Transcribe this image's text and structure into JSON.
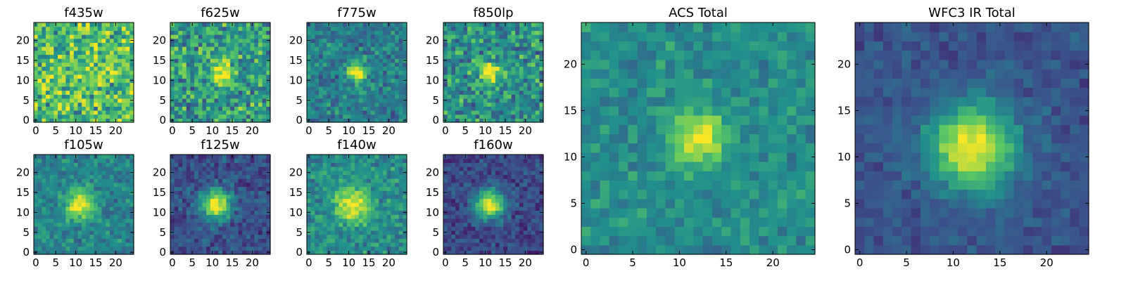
{
  "chart_data": {
    "type": "heatmap",
    "colormap": [
      "#440154",
      "#3b528b",
      "#21918c",
      "#5ec962",
      "#fde725"
    ],
    "grid_size": 25,
    "x_ticks": [
      0,
      5,
      10,
      15,
      20
    ],
    "panels": [
      {
        "title": "f435w",
        "y_ticks": [
          0,
          5,
          10,
          15,
          20
        ],
        "x_ticks": [
          0,
          5,
          10,
          15,
          20
        ],
        "peak": 0.05,
        "bg": 0.7,
        "noise": 0.25,
        "spread": 2.5,
        "center": [
          12,
          12
        ],
        "seed": 11
      },
      {
        "title": "f625w",
        "y_ticks": [
          0,
          5,
          10,
          15,
          20
        ],
        "x_ticks": [
          0,
          5,
          10,
          15,
          20
        ],
        "peak": 0.3,
        "bg": 0.55,
        "noise": 0.22,
        "spread": 2.0,
        "center": [
          12,
          12
        ],
        "seed": 23
      },
      {
        "title": "f775w",
        "y_ticks": [
          0,
          5,
          10,
          15,
          20
        ],
        "x_ticks": [
          0,
          5,
          10,
          15,
          20
        ],
        "peak": 0.55,
        "bg": 0.42,
        "noise": 0.14,
        "spread": 1.8,
        "center": [
          12,
          12
        ],
        "seed": 37
      },
      {
        "title": "f850lp",
        "y_ticks": [
          0,
          5,
          10,
          15,
          20
        ],
        "x_ticks": [
          0,
          5,
          10,
          15,
          20
        ],
        "peak": 0.45,
        "bg": 0.5,
        "noise": 0.2,
        "spread": 1.8,
        "center": [
          11,
          12
        ],
        "seed": 41
      },
      {
        "title": "f105w",
        "y_ticks": [
          0,
          5,
          10,
          15,
          20
        ],
        "x_ticks": [
          0,
          5,
          10,
          15,
          20
        ],
        "peak": 0.5,
        "bg": 0.45,
        "noise": 0.12,
        "spread": 2.5,
        "center": [
          11,
          12
        ],
        "seed": 53
      },
      {
        "title": "f125w",
        "y_ticks": [
          0,
          5,
          10,
          15,
          20
        ],
        "x_ticks": [
          0,
          5,
          10,
          15,
          20
        ],
        "peak": 0.7,
        "bg": 0.25,
        "noise": 0.1,
        "spread": 2.6,
        "center": [
          11,
          12
        ],
        "seed": 67
      },
      {
        "title": "f140w",
        "y_ticks": [
          0,
          5,
          10,
          15,
          20
        ],
        "x_ticks": [
          0,
          5,
          10,
          15,
          20
        ],
        "peak": 0.45,
        "bg": 0.48,
        "noise": 0.13,
        "spread": 3.0,
        "center": [
          11,
          12
        ],
        "seed": 71
      },
      {
        "title": "f160w",
        "y_ticks": [
          0,
          5,
          10,
          15,
          20
        ],
        "x_ticks": [
          0,
          5,
          10,
          15,
          20
        ],
        "peak": 0.75,
        "bg": 0.22,
        "noise": 0.1,
        "spread": 2.5,
        "center": [
          11,
          12
        ],
        "seed": 83
      },
      {
        "title": "ACS Total",
        "y_ticks": [
          0,
          5,
          10,
          15,
          20
        ],
        "x_ticks": [
          0,
          5,
          10,
          15,
          20
        ],
        "peak": 0.5,
        "bg": 0.48,
        "noise": 0.1,
        "spread": 2.0,
        "center": [
          12,
          12
        ],
        "seed": 97
      },
      {
        "title": "WFC3 IR Total",
        "y_ticks": [
          0,
          5,
          10,
          15,
          20
        ],
        "x_ticks": [
          0,
          5,
          10,
          15,
          20
        ],
        "peak": 0.75,
        "bg": 0.26,
        "noise": 0.07,
        "spread": 3.2,
        "center": [
          12,
          11
        ],
        "seed": 101
      }
    ]
  }
}
